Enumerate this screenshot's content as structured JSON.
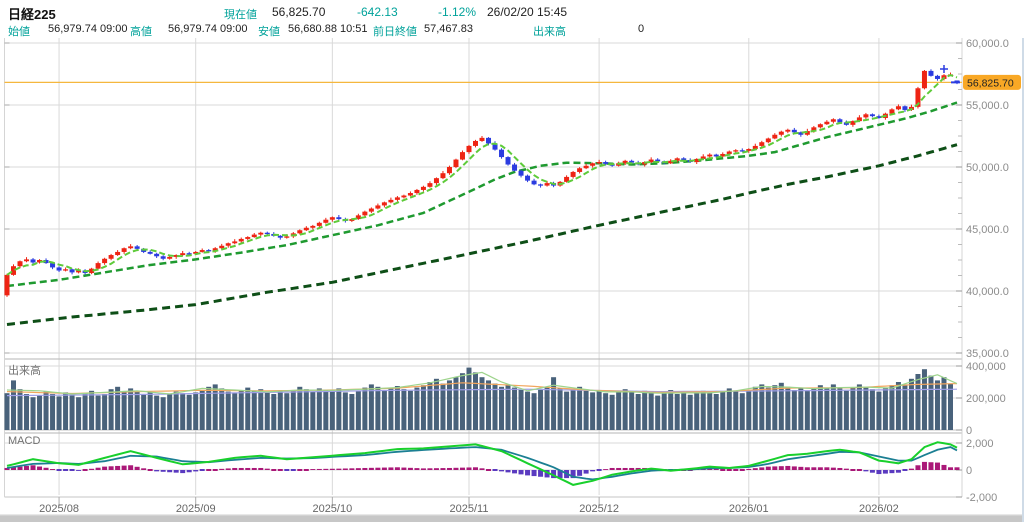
{
  "header": {
    "symbol": "日経225",
    "current_label": "現在値",
    "current_value": "56,825.70",
    "change": "-642.13",
    "change_pct": "-1.12%",
    "datetime": "26/02/20 15:45",
    "open_label": "始値",
    "open_value": "56,979.74 09:00",
    "high_label": "高値",
    "high_value": "56,979.74 09:00",
    "low_label": "安値",
    "low_value": "56,680.88 10:51",
    "prev_close_label": "前日終値",
    "prev_close_value": "57,467.83",
    "volume_label": "出来高",
    "volume_value": "0"
  },
  "colors": {
    "accent_teal": "#00a29a",
    "candle_up": "#ee2414",
    "candle_down": "#2b3ce0",
    "ma_short": "#5ecb3a",
    "ma_mid": "#1f9a30",
    "ma_long": "#0e4f17",
    "current_price_line": "#f5b73e",
    "price_badge_bg": "#f9a825",
    "volume_bar": "#49627b",
    "vol_ma_short": "#9ed48c",
    "vol_ma_mid": "#f2a65e",
    "vol_ma_long": "#9f9fe8",
    "macd_line": "#19d02c",
    "macd_signal": "#1b7f93",
    "hist_pos": "#aa1878",
    "hist_neg": "#5a3ac0",
    "grid": "#d9d9d9",
    "divider": "#b5b5b5",
    "axis_text": "#8c8c8c",
    "month_text": "#666666",
    "panel_label": "#707070"
  },
  "chart_data": [
    {
      "type": "candlestick",
      "title": "日経225 daily candlestick with 5/25/75-day moving averages",
      "ylim": [
        35000,
        60000
      ],
      "yticks": [
        {
          "v": 60000,
          "label": "60,000.0"
        },
        {
          "v": 55000,
          "label": "55,000.0"
        },
        {
          "v": 50000,
          "label": "50,000.0"
        },
        {
          "v": 45000,
          "label": "45,000.0"
        },
        {
          "v": 40000,
          "label": "40,000.0"
        },
        {
          "v": 35000,
          "label": "35,000.0"
        }
      ],
      "minor_tick_step": 1250,
      "months": [
        {
          "label": "2025/08",
          "i": 8
        },
        {
          "label": "2025/09",
          "i": 29
        },
        {
          "label": "2025/10",
          "i": 50
        },
        {
          "label": "2025/11",
          "i": 71
        },
        {
          "label": "2025/12",
          "i": 91
        },
        {
          "label": "2026/01",
          "i": 114
        },
        {
          "label": "2026/02",
          "i": 134
        }
      ],
      "first_open": 39650,
      "closes": [
        41300,
        42000,
        42400,
        42550,
        42300,
        42500,
        42250,
        41900,
        41650,
        41750,
        41500,
        41650,
        41450,
        41800,
        42250,
        42600,
        42900,
        43150,
        43450,
        43600,
        43400,
        43150,
        43000,
        42800,
        42600,
        42750,
        42900,
        43050,
        43000,
        43150,
        43300,
        43200,
        43450,
        43650,
        43850,
        44000,
        44200,
        44350,
        44550,
        44700,
        44600,
        44450,
        44300,
        44400,
        44650,
        44900,
        45100,
        45250,
        45500,
        45750,
        45950,
        45800,
        45650,
        45800,
        46100,
        46400,
        46650,
        46900,
        47150,
        47350,
        47550,
        47700,
        47900,
        48150,
        48400,
        48700,
        49100,
        49500,
        50000,
        50600,
        51200,
        51700,
        52100,
        52350,
        51900,
        51400,
        50800,
        50200,
        49700,
        49300,
        48900,
        48600,
        48500,
        48700,
        48500,
        48800,
        49200,
        49600,
        49900,
        50100,
        50300,
        50400,
        50250,
        50100,
        50300,
        50500,
        50350,
        50200,
        50400,
        50600,
        50450,
        50300,
        50500,
        50700,
        50550,
        50400,
        50650,
        50850,
        51000,
        50850,
        51050,
        51250,
        51350,
        51300,
        51450,
        51700,
        52000,
        52300,
        52600,
        52850,
        53000,
        52800,
        52600,
        52900,
        53200,
        53450,
        53650,
        53850,
        53600,
        53400,
        53700,
        54000,
        54250,
        54100,
        53950,
        54300,
        54650,
        54900,
        54600,
        54850,
        56350,
        57750,
        57350,
        57100,
        57400,
        57467.83,
        56825.7
      ],
      "today_ohlc": {
        "open": 56979.74,
        "high": 56979.74,
        "low": 56680.88,
        "close": 56825.7
      },
      "current_price": 56825.7,
      "current_price_label": "56,825.70",
      "wick_up": [
        90,
        150,
        60,
        180,
        110,
        70,
        130,
        80
      ],
      "wick_down": [
        120,
        70,
        160,
        80,
        130,
        90,
        60,
        140
      ],
      "ma_short_period": 5,
      "ma_mid_anchors": [
        [
          0,
          40400
        ],
        [
          8,
          40900
        ],
        [
          15,
          41500
        ],
        [
          22,
          42100
        ],
        [
          29,
          42550
        ],
        [
          36,
          43100
        ],
        [
          43,
          43700
        ],
        [
          50,
          44500
        ],
        [
          57,
          45300
        ],
        [
          64,
          46300
        ],
        [
          71,
          48000
        ],
        [
          75,
          49000
        ],
        [
          78,
          49600
        ],
        [
          82,
          50100
        ],
        [
          86,
          50350
        ],
        [
          91,
          50300
        ],
        [
          96,
          50200
        ],
        [
          101,
          50300
        ],
        [
          106,
          50500
        ],
        [
          111,
          50750
        ],
        [
          114,
          50900
        ],
        [
          118,
          51200
        ],
        [
          122,
          51800
        ],
        [
          126,
          52400
        ],
        [
          130,
          52900
        ],
        [
          134,
          53400
        ],
        [
          138,
          53900
        ],
        [
          142,
          54500
        ],
        [
          146,
          55200
        ]
      ],
      "ma_long_anchors": [
        [
          0,
          37300
        ],
        [
          10,
          37900
        ],
        [
          20,
          38400
        ],
        [
          29,
          38900
        ],
        [
          40,
          39900
        ],
        [
          50,
          40700
        ],
        [
          60,
          41800
        ],
        [
          71,
          43000
        ],
        [
          80,
          44000
        ],
        [
          91,
          45300
        ],
        [
          100,
          46300
        ],
        [
          110,
          47400
        ],
        [
          114,
          47900
        ],
        [
          120,
          48600
        ],
        [
          126,
          49200
        ],
        [
          134,
          50100
        ],
        [
          140,
          50900
        ],
        [
          146,
          51800
        ]
      ]
    },
    {
      "type": "bar",
      "label": "出来高",
      "yticks": [
        {
          "v": 400,
          "label": "400,000"
        },
        {
          "v": 200,
          "label": "200,000"
        },
        {
          "v": 0,
          "label": "0"
        }
      ],
      "values_thousands": [
        230,
        310,
        255,
        225,
        205,
        215,
        240,
        225,
        210,
        235,
        220,
        205,
        230,
        245,
        215,
        225,
        255,
        270,
        240,
        260,
        245,
        225,
        235,
        215,
        205,
        225,
        240,
        230,
        220,
        235,
        250,
        270,
        285,
        260,
        240,
        230,
        250,
        265,
        245,
        255,
        235,
        225,
        245,
        230,
        250,
        270,
        255,
        240,
        260,
        250,
        245,
        260,
        235,
        225,
        245,
        265,
        285,
        270,
        250,
        260,
        275,
        255,
        245,
        265,
        280,
        300,
        320,
        290,
        310,
        330,
        355,
        390,
        360,
        330,
        310,
        290,
        270,
        285,
        265,
        250,
        240,
        230,
        250,
        270,
        330,
        260,
        240,
        255,
        270,
        245,
        235,
        250,
        230,
        220,
        240,
        255,
        235,
        225,
        245,
        230,
        215,
        235,
        250,
        225,
        240,
        220,
        230,
        245,
        235,
        225,
        240,
        260,
        245,
        230,
        250,
        270,
        285,
        265,
        280,
        295,
        270,
        250,
        265,
        245,
        260,
        280,
        265,
        285,
        260,
        245,
        265,
        285,
        270,
        255,
        240,
        260,
        280,
        300,
        285,
        320,
        350,
        380,
        340,
        310,
        330,
        290,
        0
      ],
      "ma_short_anchors": [
        [
          0,
          250
        ],
        [
          5,
          245
        ],
        [
          10,
          225
        ],
        [
          15,
          235
        ],
        [
          20,
          245
        ],
        [
          25,
          225
        ],
        [
          30,
          260
        ],
        [
          35,
          250
        ],
        [
          40,
          238
        ],
        [
          45,
          250
        ],
        [
          50,
          248
        ],
        [
          55,
          255
        ],
        [
          60,
          265
        ],
        [
          65,
          295
        ],
        [
          70,
          340
        ],
        [
          73,
          360
        ],
        [
          76,
          300
        ],
        [
          80,
          245
        ],
        [
          84,
          280
        ],
        [
          88,
          258
        ],
        [
          92,
          238
        ],
        [
          96,
          238
        ],
        [
          100,
          230
        ],
        [
          104,
          232
        ],
        [
          108,
          232
        ],
        [
          112,
          245
        ],
        [
          116,
          272
        ],
        [
          120,
          268
        ],
        [
          124,
          258
        ],
        [
          128,
          265
        ],
        [
          132,
          268
        ],
        [
          136,
          262
        ],
        [
          140,
          315
        ],
        [
          143,
          345
        ],
        [
          146,
          290
        ]
      ],
      "ma_mid_anchors": [
        [
          0,
          240
        ],
        [
          10,
          228
        ],
        [
          20,
          240
        ],
        [
          30,
          248
        ],
        [
          40,
          245
        ],
        [
          50,
          250
        ],
        [
          60,
          262
        ],
        [
          70,
          295
        ],
        [
          80,
          275
        ],
        [
          90,
          248
        ],
        [
          100,
          235
        ],
        [
          110,
          240
        ],
        [
          120,
          262
        ],
        [
          130,
          264
        ],
        [
          140,
          285
        ],
        [
          146,
          290
        ]
      ],
      "ma_long_anchors": [
        [
          0,
          215
        ],
        [
          20,
          222
        ],
        [
          40,
          235
        ],
        [
          60,
          248
        ],
        [
          80,
          255
        ],
        [
          100,
          240
        ],
        [
          120,
          245
        ],
        [
          146,
          255
        ]
      ]
    },
    {
      "type": "line+histogram",
      "label": "MACD",
      "yticks": [
        {
          "v": 2000,
          "label": "2,000"
        },
        {
          "v": 0,
          "label": "0"
        },
        {
          "v": -2000,
          "label": "-2,000"
        }
      ],
      "macd_anchors": [
        [
          0,
          300
        ],
        [
          4,
          800
        ],
        [
          8,
          500
        ],
        [
          11,
          380
        ],
        [
          15,
          900
        ],
        [
          19,
          1400
        ],
        [
          23,
          900
        ],
        [
          27,
          420
        ],
        [
          31,
          600
        ],
        [
          35,
          900
        ],
        [
          39,
          1050
        ],
        [
          43,
          800
        ],
        [
          47,
          950
        ],
        [
          51,
          1100
        ],
        [
          55,
          1250
        ],
        [
          60,
          1550
        ],
        [
          64,
          1600
        ],
        [
          68,
          1750
        ],
        [
          72,
          1900
        ],
        [
          76,
          1400
        ],
        [
          80,
          500
        ],
        [
          84,
          -400
        ],
        [
          87,
          -1100
        ],
        [
          90,
          -800
        ],
        [
          93,
          -350
        ],
        [
          96,
          -100
        ],
        [
          99,
          100
        ],
        [
          102,
          -50
        ],
        [
          105,
          80
        ],
        [
          108,
          250
        ],
        [
          111,
          150
        ],
        [
          114,
          300
        ],
        [
          117,
          700
        ],
        [
          120,
          1100
        ],
        [
          123,
          1200
        ],
        [
          126,
          1400
        ],
        [
          128,
          1500
        ],
        [
          131,
          1300
        ],
        [
          134,
          700
        ],
        [
          137,
          500
        ],
        [
          139,
          800
        ],
        [
          141,
          1700
        ],
        [
          143,
          2050
        ],
        [
          145,
          1900
        ],
        [
          146,
          1650
        ]
      ],
      "signal_anchors": [
        [
          0,
          150
        ],
        [
          4,
          450
        ],
        [
          8,
          520
        ],
        [
          11,
          450
        ],
        [
          15,
          650
        ],
        [
          19,
          1050
        ],
        [
          23,
          1000
        ],
        [
          27,
          650
        ],
        [
          31,
          580
        ],
        [
          35,
          750
        ],
        [
          39,
          900
        ],
        [
          43,
          850
        ],
        [
          47,
          880
        ],
        [
          51,
          1000
        ],
        [
          55,
          1100
        ],
        [
          60,
          1350
        ],
        [
          64,
          1480
        ],
        [
          68,
          1600
        ],
        [
          72,
          1700
        ],
        [
          76,
          1500
        ],
        [
          80,
          900
        ],
        [
          84,
          200
        ],
        [
          87,
          -500
        ],
        [
          90,
          -700
        ],
        [
          93,
          -500
        ],
        [
          96,
          -250
        ],
        [
          99,
          -50
        ],
        [
          102,
          0
        ],
        [
          105,
          30
        ],
        [
          108,
          130
        ],
        [
          111,
          150
        ],
        [
          114,
          220
        ],
        [
          117,
          450
        ],
        [
          120,
          800
        ],
        [
          123,
          1000
        ],
        [
          126,
          1200
        ],
        [
          128,
          1350
        ],
        [
          131,
          1300
        ],
        [
          134,
          1000
        ],
        [
          137,
          700
        ],
        [
          139,
          700
        ],
        [
          141,
          1100
        ],
        [
          143,
          1500
        ],
        [
          145,
          1700
        ],
        [
          146,
          1450
        ]
      ]
    }
  ]
}
